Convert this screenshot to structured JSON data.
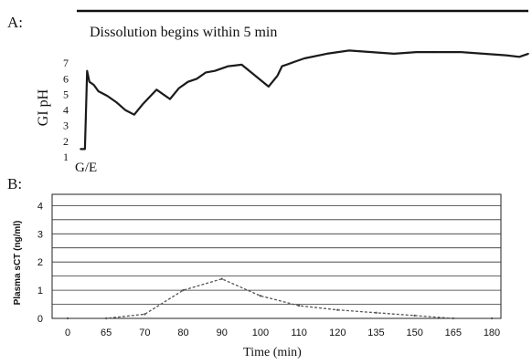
{
  "chart_data": [
    {
      "panel": "A:",
      "type": "line",
      "title": "Dissolution begins within 5 min",
      "ylabel": "GI pH",
      "y_ticks": [
        1,
        2,
        3,
        4,
        5,
        6,
        7
      ],
      "ylim": [
        1,
        8
      ],
      "annotation": "G/E",
      "x_progress": [
        0.0,
        0.01,
        0.015,
        0.02,
        0.03,
        0.04,
        0.06,
        0.08,
        0.1,
        0.12,
        0.14,
        0.17,
        0.2,
        0.22,
        0.24,
        0.26,
        0.28,
        0.3,
        0.33,
        0.36,
        0.39,
        0.42,
        0.44,
        0.45,
        0.46,
        0.48,
        0.5,
        0.55,
        0.6,
        0.65,
        0.7,
        0.75,
        0.8,
        0.85,
        0.9,
        0.95,
        0.98,
        1.0
      ],
      "values": [
        1.5,
        1.5,
        6.5,
        5.8,
        5.6,
        5.2,
        4.9,
        4.5,
        4.0,
        3.7,
        4.4,
        5.3,
        4.7,
        5.4,
        5.8,
        6.0,
        6.4,
        6.5,
        6.8,
        6.9,
        6.2,
        5.5,
        6.2,
        6.8,
        6.9,
        7.1,
        7.3,
        7.6,
        7.8,
        7.7,
        7.6,
        7.7,
        7.7,
        7.7,
        7.6,
        7.5,
        7.4,
        7.6
      ]
    },
    {
      "panel": "B:",
      "type": "line",
      "ylabel": "Plasma sCT (ng/ml)",
      "xlabel": "Time (min)",
      "categories": [
        "0",
        "65",
        "70",
        "80",
        "90",
        "100",
        "110",
        "120",
        "135",
        "150",
        "165",
        "180"
      ],
      "values": [
        0,
        0,
        0.15,
        1.0,
        1.4,
        0.8,
        0.45,
        0.3,
        0.2,
        0.1,
        0,
        0
      ],
      "y_ticks": [
        0,
        1,
        2,
        3,
        4
      ],
      "ylim": [
        0,
        4.4
      ],
      "grid": true
    }
  ]
}
